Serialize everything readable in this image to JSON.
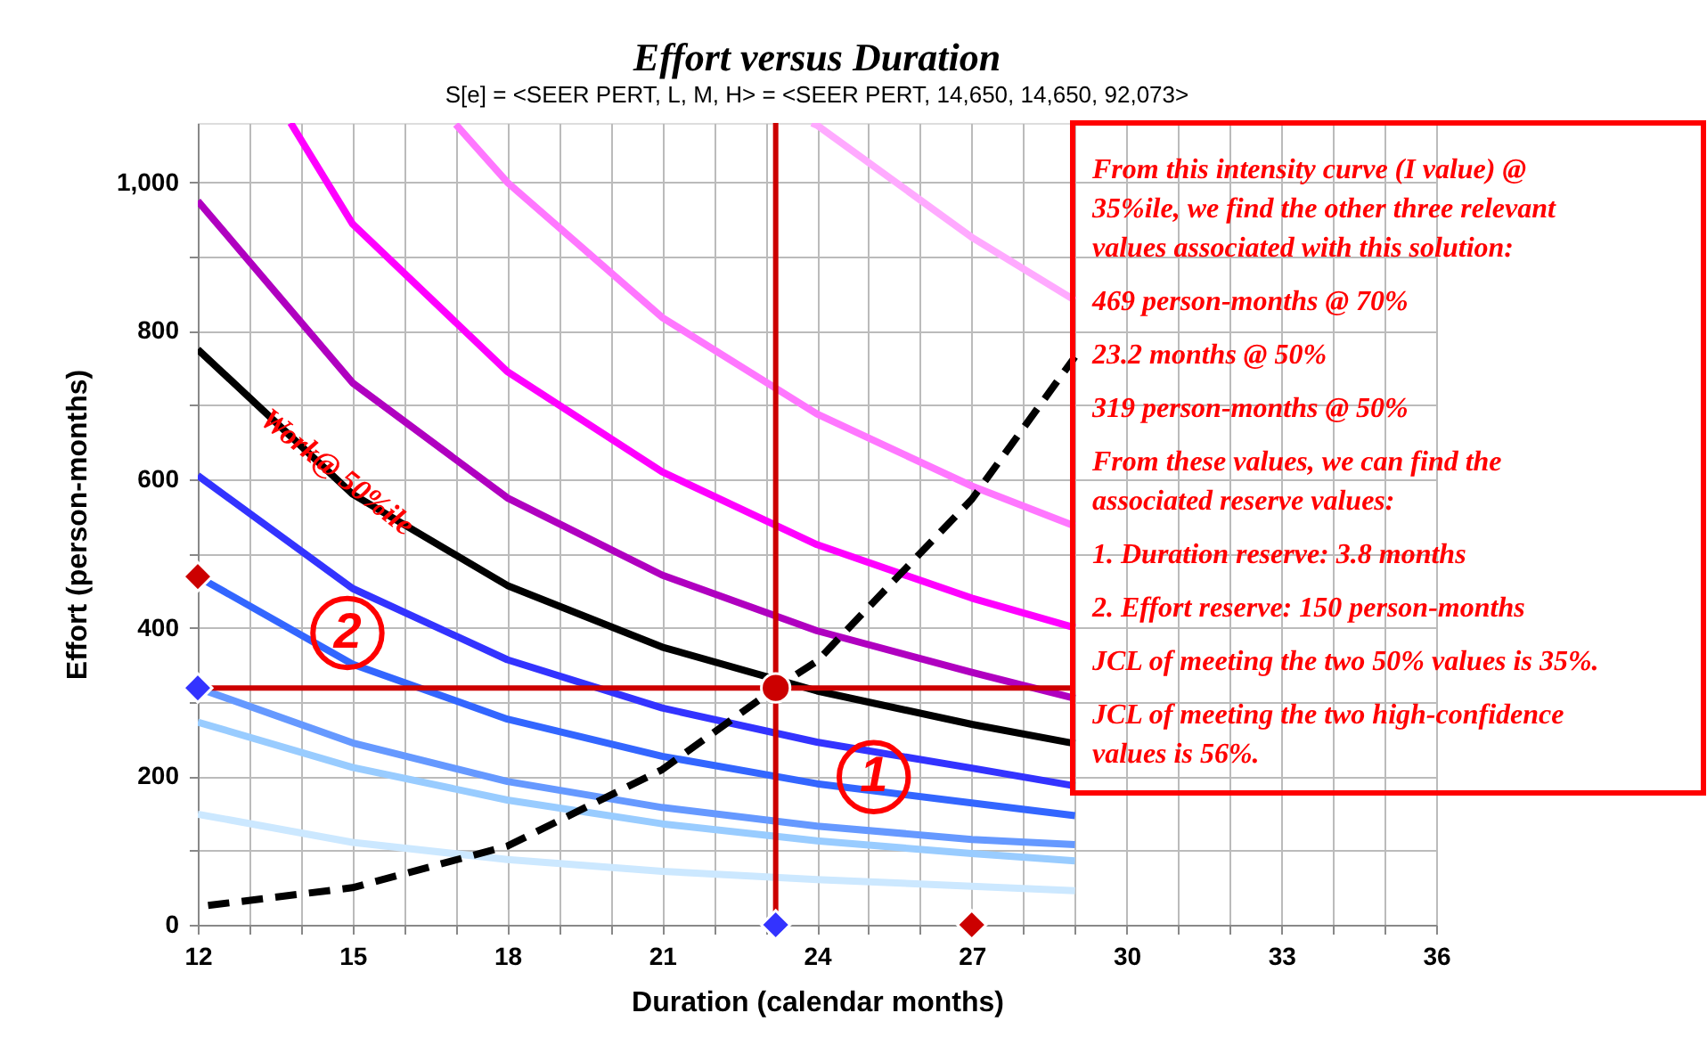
{
  "chart_data": {
    "type": "line",
    "title": "Effort versus Duration",
    "subtitle": "S[e] = <SEER PERT, L, M, H> = <SEER PERT, 14,650, 14,650, 92,073>",
    "xlabel": "Duration (calendar months)",
    "ylabel": "Effort (person-months)",
    "xlim": [
      12,
      36
    ],
    "ylim": [
      0,
      1080
    ],
    "xticks": [
      12,
      {
        "value": 13,
        "label": null
      },
      {
        "value": 14,
        "label": null
      },
      15,
      {
        "value": 16,
        "label": null
      },
      {
        "value": 17,
        "label": null
      },
      18,
      {
        "value": 19,
        "label": null
      },
      {
        "value": 20,
        "label": null
      },
      21,
      {
        "value": 22,
        "label": null
      },
      {
        "value": 23,
        "label": null
      },
      24,
      {
        "value": 25,
        "label": null
      },
      {
        "value": 26,
        "label": null
      },
      27,
      {
        "value": 28,
        "label": null
      },
      {
        "value": 29,
        "label": null
      },
      30,
      {
        "value": 31,
        "label": null
      },
      {
        "value": 32,
        "label": null
      },
      33,
      {
        "value": 34,
        "label": null
      },
      {
        "value": 35,
        "label": null
      },
      36
    ],
    "yticks": [
      0,
      {
        "value": 100,
        "label": null
      },
      200,
      {
        "value": 300,
        "label": null
      },
      400,
      {
        "value": 500,
        "label": null
      },
      600,
      {
        "value": 700,
        "label": null
      },
      800,
      {
        "value": 900,
        "label": null
      },
      {
        "value": 1000,
        "label": "1,000"
      }
    ],
    "grid": true,
    "series": [
      {
        "type": "line",
        "color": "#cce8ff",
        "x": [
          12,
          15,
          18,
          21,
          24,
          27,
          29
        ],
        "values": [
          149,
          111,
          88,
          72,
          61,
          52,
          46
        ]
      },
      {
        "type": "line",
        "color": "#99ccff",
        "x": [
          12,
          15,
          18,
          21,
          24,
          27,
          29
        ],
        "values": [
          273,
          212,
          168,
          136,
          113,
          96,
          86
        ]
      },
      {
        "type": "line",
        "color": "#6699ff",
        "x": [
          12,
          15,
          18,
          21,
          24,
          27,
          29
        ],
        "values": [
          319,
          245,
          193,
          158,
          133,
          115,
          108
        ]
      },
      {
        "type": "line",
        "color": "#3366ff",
        "x": [
          12,
          15,
          18,
          21,
          24,
          27,
          29
        ],
        "values": [
          469,
          351,
          277,
          227,
          190,
          164,
          147
        ]
      },
      {
        "type": "line",
        "color": "#3333ff",
        "x": [
          12,
          15,
          18,
          21,
          24,
          27,
          29
        ],
        "values": [
          605,
          453,
          357,
          292,
          246,
          211,
          187
        ]
      },
      {
        "type": "line",
        "color": "#000000",
        "x": [
          12,
          15,
          18,
          21,
          24,
          27,
          29
        ],
        "values": [
          775,
          580,
          457,
          374,
          315,
          270,
          244
        ]
      },
      {
        "type": "line",
        "color": "#b000c0",
        "x": [
          12,
          15,
          18,
          21,
          24,
          27,
          29
        ],
        "values": [
          975,
          730,
          575,
          471,
          396,
          340,
          305
        ]
      },
      {
        "type": "line",
        "color": "#ff00ff",
        "x": [
          13.8,
          15,
          18,
          21,
          24,
          27,
          29
        ],
        "values": [
          1080,
          944,
          745,
          610,
          512,
          440,
          400
        ]
      },
      {
        "type": "line",
        "color": "#ff77ff",
        "x": [
          17,
          18,
          21,
          24,
          27,
          29
        ],
        "values": [
          1078,
          1000,
          818,
          688,
          591,
          537
        ]
      },
      {
        "type": "line",
        "color": "#ffaaff",
        "x": [
          23.9,
          24,
          27,
          29
        ],
        "values": [
          1080,
          1077,
          926,
          841
        ]
      },
      {
        "type": "line",
        "color": "#000000",
        "line_style": "dashed",
        "x": [
          12.2,
          15,
          18,
          21,
          23.2,
          24,
          27,
          29
        ],
        "values": [
          26,
          50,
          106,
          209,
          319,
          355,
          573,
          765
        ]
      },
      {
        "type": "scatter",
        "marker": "diamond",
        "x": [
          12,
          12,
          23.2,
          27
        ],
        "values": [
          469,
          319,
          0,
          0
        ],
        "colors": [
          "#cc0000",
          "#3333ff",
          "#3333ff",
          "#cc0000"
        ]
      },
      {
        "type": "scatter",
        "marker": "circle",
        "color": "#cc0000",
        "x": [
          23.2
        ],
        "values": [
          319
        ]
      }
    ],
    "ref_lines": [
      {
        "axis": "x",
        "value": 23.2,
        "color": "#cc0000"
      },
      {
        "axis": "y",
        "value": 319,
        "color": "#cc0000"
      }
    ],
    "annotations": [
      "From this intensity curve (I value) @ 35%ile, we find  the other three relevant values associated with this solution:",
      "469 person-months @ 70%",
      "23.2 months @ 50%",
      "319 person-months @ 50%",
      "From these values, we can find the associated reserve values:",
      "1. Duration reserve: 3.8 months",
      "2. Effort reserve: 150 person-months",
      "JCL of meeting the two 50% values is 35%.",
      "JCL of meeting the two high-confidence values is 56%.",
      {
        "text": "Work@ 50%ile",
        "x": 14.7,
        "y": 609
      },
      {
        "text": "2",
        "x": 14.9,
        "y": 393
      },
      {
        "text": "1",
        "x": 25.1,
        "y": 199
      }
    ]
  }
}
